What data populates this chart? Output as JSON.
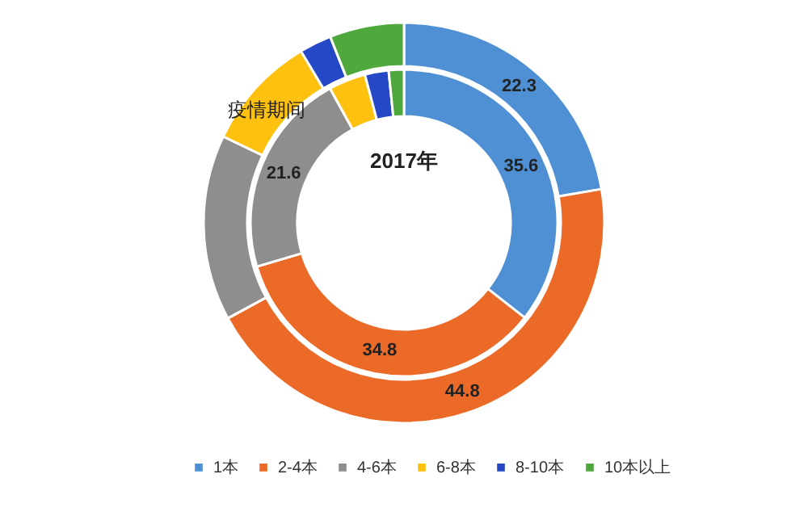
{
  "chart_data": {
    "type": "donut",
    "categories": [
      "1本",
      "2-4本",
      "4-6本",
      "6-8本",
      "8-10本",
      "10本以上"
    ],
    "colors": [
      "#4f8fd4",
      "#ec6a27",
      "#8e8e8e",
      "#fec10f",
      "#2548c6",
      "#4ea83c"
    ],
    "series": [
      {
        "name": "疫情期间",
        "values": [
          22.3,
          44.8,
          15.0,
          9.3,
          2.6,
          6.0
        ],
        "value_labels": [
          "22.3",
          "44.8",
          null,
          null,
          null,
          null
        ]
      },
      {
        "name": "2017年",
        "values": [
          35.6,
          34.8,
          21.6,
          3.9,
          2.5,
          1.6
        ],
        "value_labels": [
          "35.6",
          "34.8",
          "21.6",
          null,
          null,
          null
        ]
      }
    ],
    "legend": "bottom"
  }
}
